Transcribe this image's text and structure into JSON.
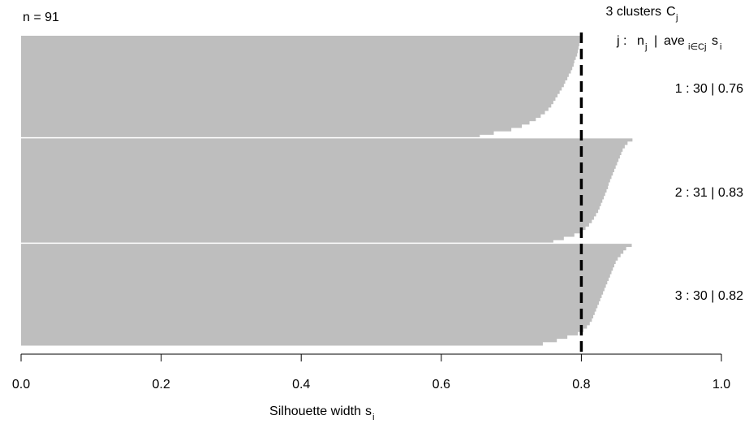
{
  "chart_data": {
    "type": "bar",
    "orientation": "horizontal",
    "n_label": "n = 91",
    "legend_title": "3 clusters",
    "legend_title_symbol": "C",
    "legend_title_sub": "j",
    "legend_header": {
      "j": "j :",
      "n": "n",
      "n_sub": "j",
      "sep": "|",
      "ave": "ave",
      "ave_sub": "i∈Cj",
      "s": "s",
      "s_sub": "i"
    },
    "xlabel": "Silhouette width",
    "xlabel_sub": "i",
    "xlabel_symbol": "s",
    "xlim": [
      0,
      1
    ],
    "x_ticks": [
      "0.0",
      "0.2",
      "0.4",
      "0.6",
      "0.8",
      "1.0"
    ],
    "average_silhouette": 0.8,
    "bar_color": "#bebebe",
    "clusters": [
      {
        "label": "1 :  30  |  0.76",
        "size": 30,
        "avg": 0.76,
        "values": [
          0.801,
          0.799,
          0.797,
          0.796,
          0.795,
          0.794,
          0.792,
          0.79,
          0.789,
          0.787,
          0.785,
          0.782,
          0.78,
          0.777,
          0.775,
          0.772,
          0.769,
          0.766,
          0.763,
          0.76,
          0.757,
          0.753,
          0.748,
          0.742,
          0.735,
          0.726,
          0.715,
          0.7,
          0.675,
          0.655
        ]
      },
      {
        "label": "2 :  31  |  0.83",
        "size": 31,
        "avg": 0.83,
        "values": [
          0.873,
          0.866,
          0.862,
          0.859,
          0.857,
          0.855,
          0.853,
          0.851,
          0.849,
          0.847,
          0.845,
          0.843,
          0.841,
          0.839,
          0.838,
          0.836,
          0.834,
          0.832,
          0.83,
          0.828,
          0.826,
          0.824,
          0.821,
          0.818,
          0.815,
          0.811,
          0.806,
          0.8,
          0.79,
          0.775,
          0.76
        ]
      },
      {
        "label": "3 :  30  |  0.82",
        "size": 30,
        "avg": 0.82,
        "values": [
          0.872,
          0.864,
          0.86,
          0.856,
          0.852,
          0.849,
          0.847,
          0.845,
          0.843,
          0.841,
          0.839,
          0.837,
          0.835,
          0.833,
          0.831,
          0.829,
          0.827,
          0.825,
          0.823,
          0.821,
          0.819,
          0.817,
          0.815,
          0.812,
          0.808,
          0.803,
          0.795,
          0.78,
          0.765,
          0.745
        ]
      }
    ]
  }
}
